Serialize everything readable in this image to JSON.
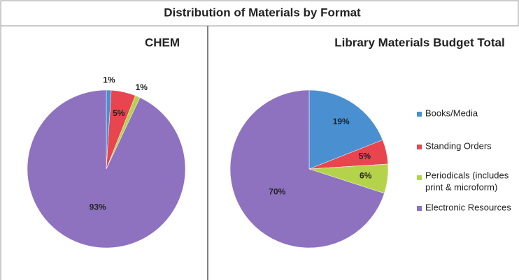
{
  "header": {
    "title": "Distribution of Materials by Format"
  },
  "chart_data": [
    {
      "type": "pie",
      "title": "CHEM",
      "values": [
        1,
        5,
        1,
        93
      ],
      "value_labels": [
        "1%",
        "5%",
        "1%",
        "93%"
      ],
      "colors": [
        "#4a90d0",
        "#e8454f",
        "#b5d34a",
        "#8e72c0"
      ]
    },
    {
      "type": "pie",
      "title": "Library Materials Budget Total",
      "categories": [
        "Books/Media",
        "Standing Orders",
        "Periodicals (includes print & microform)",
        "Electronic Resources"
      ],
      "values": [
        19,
        5,
        6,
        70
      ],
      "value_labels": [
        "19%",
        "5%",
        "6%",
        "70%"
      ],
      "colors": [
        "#4a90d0",
        "#e8454f",
        "#b5d34a",
        "#8e72c0"
      ],
      "legend": "right"
    }
  ]
}
